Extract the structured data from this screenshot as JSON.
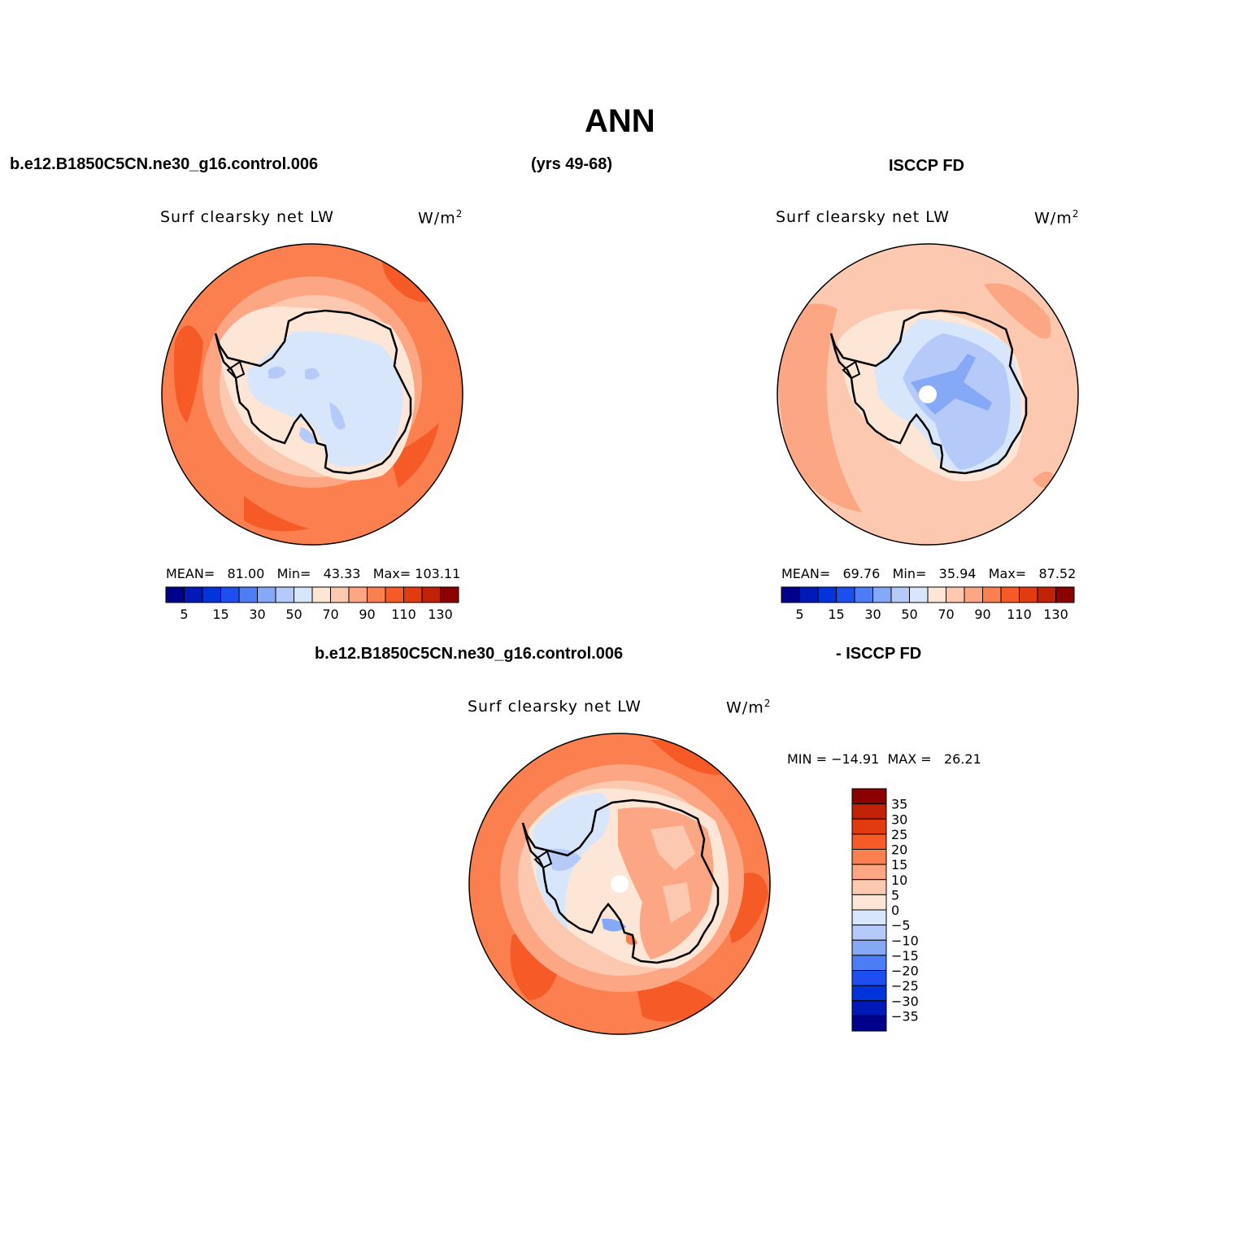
{
  "title": "ANN",
  "case_name": "b.e12.B1850C5CN.ne30_g16.control.006",
  "years": "(yrs 49-68)",
  "obs_name": "ISCCP FD",
  "diff_case_name": "b.e12.B1850C5CN.ne30_g16.control.006",
  "diff_obs_name": "- ISCCP FD",
  "panels": [
    {
      "variable": "Surf  clearsky  net  LW",
      "units": "W/m",
      "units_sup": "2",
      "stats": {
        "mean_label": "MEAN=",
        "mean": "81.00",
        "min_label": "Min=",
        "min": "43.33",
        "max_label": "Max=",
        "max": "103.11"
      }
    },
    {
      "variable": "Surf  clearsky  net  LW",
      "units": "W/m",
      "units_sup": "2",
      "stats": {
        "mean_label": "MEAN=",
        "mean": "69.76",
        "min_label": "Min=",
        "min": "35.94",
        "max_label": "Max=",
        "max": "87.52"
      }
    },
    {
      "variable": "Surf  clearsky  net  LW",
      "units": "W/m",
      "units_sup": "2",
      "stats": {
        "min_label": "MIN = ",
        "min": "−14.91",
        "max_label": "MAX = ",
        "max": "26.21"
      }
    }
  ],
  "horiz_colorbar": {
    "colors": [
      "#00008a",
      "#0019b8",
      "#0033d9",
      "#1d4ef0",
      "#4d7df5",
      "#85a8f7",
      "#b5caf8",
      "#d8e6fb",
      "#fde6d6",
      "#fdc8b0",
      "#fca684",
      "#fb7f4f",
      "#f65a26",
      "#e23b0f",
      "#c02107",
      "#8b0000"
    ],
    "labels": [
      "5",
      "15",
      "30",
      "50",
      "70",
      "90",
      "110",
      "130"
    ]
  },
  "vert_colorbar": {
    "colors_top_to_bottom": [
      "#8b0000",
      "#c02107",
      "#e23b0f",
      "#f65a26",
      "#fb7f4f",
      "#fca684",
      "#fdc8b0",
      "#fde6d6",
      "#d8e6fb",
      "#b5caf8",
      "#85a8f7",
      "#4d7df5",
      "#1d4ef0",
      "#0033d9",
      "#0019b8",
      "#00008a"
    ],
    "labels": [
      "35",
      "30",
      "25",
      "20",
      "15",
      "10",
      "5",
      "0",
      "−5",
      "−10",
      "−15",
      "−20",
      "−25",
      "−30",
      "−35"
    ]
  }
}
